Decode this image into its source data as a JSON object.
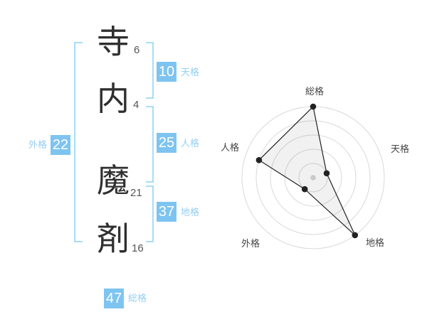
{
  "name_analysis": {
    "characters": [
      {
        "char": "寺",
        "strokes": "6"
      },
      {
        "char": "内",
        "strokes": "4"
      },
      {
        "char": "魔",
        "strokes": "21"
      },
      {
        "char": "剤",
        "strokes": "16"
      }
    ],
    "badges": {
      "tenkaku": {
        "value": "10",
        "label": "天格"
      },
      "jinkaku": {
        "value": "25",
        "label": "人格"
      },
      "chikaku": {
        "value": "37",
        "label": "地格"
      },
      "gaikaku": {
        "value": "22",
        "label": "外格"
      },
      "soukaku": {
        "value": "47",
        "label": "総格"
      }
    },
    "colors": {
      "badge_bg": "#7ec4f0",
      "badge_text": "#ffffff",
      "label_text": "#96cef3",
      "bracket": "#a9dcf8"
    }
  },
  "chart_data": {
    "type": "radar",
    "categories": [
      "総格",
      "天格",
      "地格",
      "外格",
      "人格"
    ],
    "values": [
      5,
      1,
      5,
      1,
      4
    ],
    "max": 5,
    "rings": 5,
    "title": "",
    "legend": "none",
    "grid": "concentric-circles",
    "colors": {
      "ring": "#d9d9d9",
      "fill": "rgba(0,0,0,0.055)",
      "line": "#222222",
      "point": "#222222",
      "center_dot": "#c9c9c9",
      "label": "#444444"
    }
  }
}
